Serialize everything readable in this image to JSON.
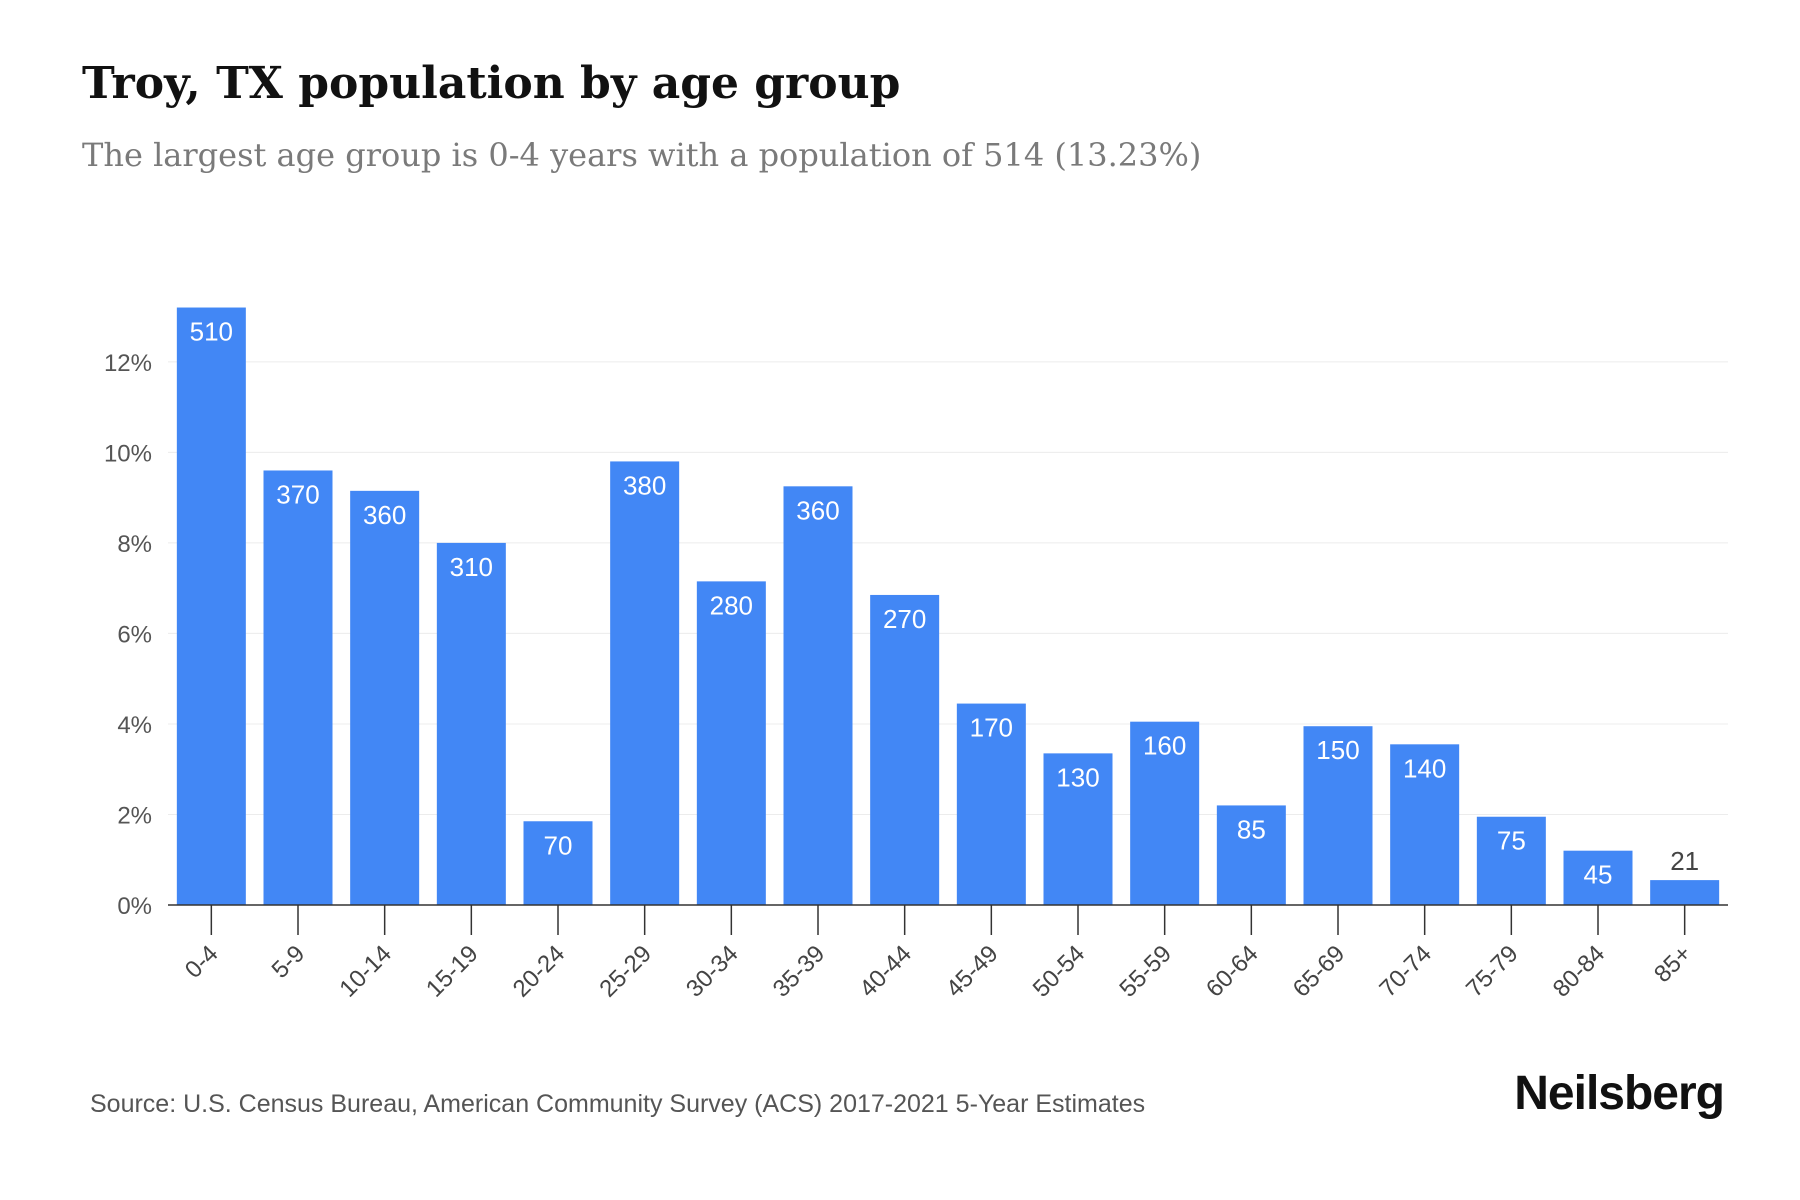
{
  "header": {
    "title": "Troy, TX population by age group",
    "subtitle": "The largest age group is 0-4 years with a population of 514 (13.23%)"
  },
  "footer": {
    "source": "Source: U.S. Census Bureau, American Community Survey (ACS) 2017-2021 5-Year Estimates",
    "brand": "Neilsberg"
  },
  "colors": {
    "bar": "#4287f5",
    "grid": "#ececec",
    "axis": "#333333",
    "bar_label": "#ffffff",
    "outside_label": "#444444"
  },
  "chart_data": {
    "type": "bar",
    "title": "Troy, TX population by age group",
    "subtitle": "The largest age group is 0-4 years with a population of 514 (13.23%)",
    "categories": [
      "0-4",
      "5-9",
      "10-14",
      "15-19",
      "20-24",
      "25-29",
      "30-34",
      "35-39",
      "40-44",
      "45-49",
      "50-54",
      "55-59",
      "60-64",
      "65-69",
      "70-74",
      "75-79",
      "80-84",
      "85+"
    ],
    "values_percent": [
      13.2,
      9.6,
      9.15,
      8.0,
      1.85,
      9.8,
      7.15,
      9.25,
      6.85,
      4.45,
      3.35,
      4.05,
      2.2,
      3.95,
      3.55,
      1.95,
      1.2,
      0.55
    ],
    "data_labels": [
      "510",
      "370",
      "360",
      "310",
      "70",
      "380",
      "280",
      "360",
      "270",
      "170",
      "130",
      "160",
      "85",
      "150",
      "140",
      "75",
      "45",
      "21"
    ],
    "y_ticks": [
      "0%",
      "2%",
      "4%",
      "6%",
      "8%",
      "10%",
      "12%"
    ],
    "y_tick_values": [
      0,
      2,
      4,
      6,
      8,
      10,
      12
    ],
    "ylim": [
      0,
      13.3
    ],
    "grid": true,
    "legend": "none"
  }
}
